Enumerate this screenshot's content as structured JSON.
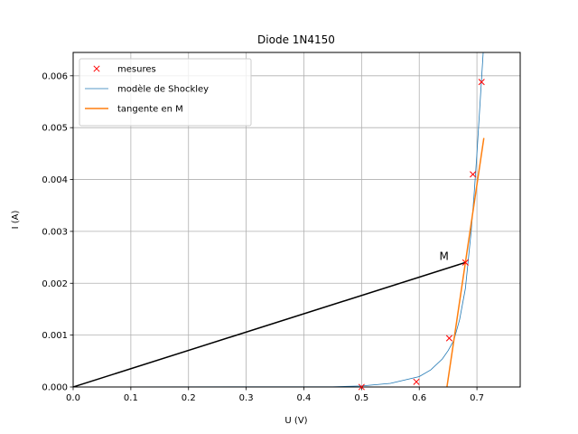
{
  "chart_data": {
    "type": "scatter",
    "title": "Diode 1N4150",
    "xlabel": "U (V)",
    "ylabel": "I (A)",
    "xlim": [
      0.0,
      0.775
    ],
    "ylim": [
      0.0,
      0.00645
    ],
    "grid": true,
    "legend_position": "top-left",
    "xticks": [
      0.0,
      0.1,
      0.2,
      0.3,
      0.4,
      0.5,
      0.6,
      0.7
    ],
    "xtick_labels": [
      "0.0",
      "0.1",
      "0.2",
      "0.3",
      "0.4",
      "0.5",
      "0.6",
      "0.7"
    ],
    "yticks": [
      0.0,
      0.001,
      0.002,
      0.003,
      0.004,
      0.005,
      0.006
    ],
    "ytick_labels": [
      "0.000",
      "0.001",
      "0.002",
      "0.003",
      "0.004",
      "0.005",
      "0.006"
    ],
    "series": [
      {
        "name": "mesures",
        "kind": "markers",
        "marker": "x",
        "color": "#ff0000",
        "x": [
          0.5,
          0.595,
          0.652,
          0.68,
          0.693,
          0.708
        ],
        "y": [
          0.0,
          0.0001,
          0.00094,
          0.0024,
          0.0041,
          0.00588
        ]
      },
      {
        "name": "modèle de Shockley",
        "kind": "line",
        "color": "#1f77b4",
        "x": [
          0.0,
          0.45,
          0.5,
          0.55,
          0.6,
          0.62,
          0.64,
          0.65,
          0.66,
          0.67,
          0.68,
          0.69,
          0.695,
          0.7,
          0.705,
          0.71,
          0.715
        ],
        "y": [
          0.0,
          5e-06,
          2e-05,
          7e-05,
          0.0002,
          0.00033,
          0.00054,
          0.0007,
          0.0009,
          0.0013,
          0.0019,
          0.003,
          0.0037,
          0.0045,
          0.0054,
          0.0063,
          0.0072
        ]
      },
      {
        "name": "tangente en M",
        "kind": "line",
        "color": "#ff7f0e",
        "x": [
          0.648,
          0.712
        ],
        "y": [
          0.0,
          0.0048
        ]
      },
      {
        "name": "",
        "kind": "line",
        "color": "#000000",
        "x": [
          0.0,
          0.68
        ],
        "y": [
          0.0,
          0.0024
        ]
      }
    ],
    "annotations": [
      {
        "text": "M",
        "x": 0.643,
        "y": 0.00245
      }
    ]
  }
}
